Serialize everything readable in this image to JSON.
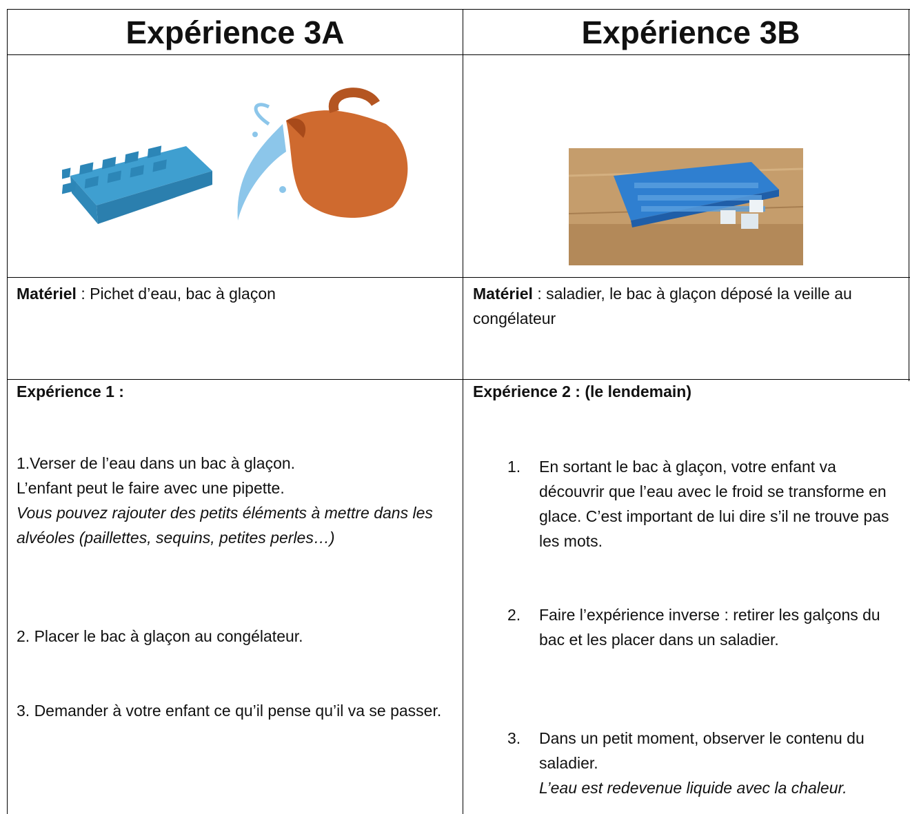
{
  "columns": [
    {
      "title": "Expérience 3A",
      "material": {
        "label": "Matériel",
        "text": " : Pichet d’eau, bac à glaçon"
      },
      "experiment": {
        "title": "Expérience 1 :",
        "paragraphs": [
          {
            "lines": [
              "1.Verser de l’eau dans un bac à glaçon.",
              "L’enfant peut le faire avec une pipette."
            ],
            "note": "Vous pouvez rajouter des petits éléments à mettre dans les alvéoles (paillettes, sequins, petites perles…)"
          },
          {
            "lines": [
              "2. Placer le bac à glaçon au congélateur."
            ]
          },
          {
            "lines": [
              "3. Demander à votre enfant ce qu’il pense qu’il va se passer."
            ]
          }
        ]
      }
    },
    {
      "title": "Expérience 3B",
      "material": {
        "label": "Matériel",
        "text": " : saladier, le bac à glaçon déposé la veille au congélateur"
      },
      "experiment": {
        "title": "Expérience 2 : (le lendemain)",
        "steps": [
          {
            "number": "1.",
            "text": "En sortant le bac à glaçon, votre enfant va découvrir que l’eau avec le froid se transforme en glace. C’est important de lui dire s’il ne trouve pas les mots."
          },
          {
            "number": "2.",
            "text": "Faire l’expérience inverse : retirer les galçons du bac et les placer dans un saladier."
          },
          {
            "number": "3.",
            "text": "Dans un petit moment, observer le contenu du saladier.",
            "note": "L’eau est redevenue liquide avec la chaleur."
          }
        ]
      }
    }
  ]
}
